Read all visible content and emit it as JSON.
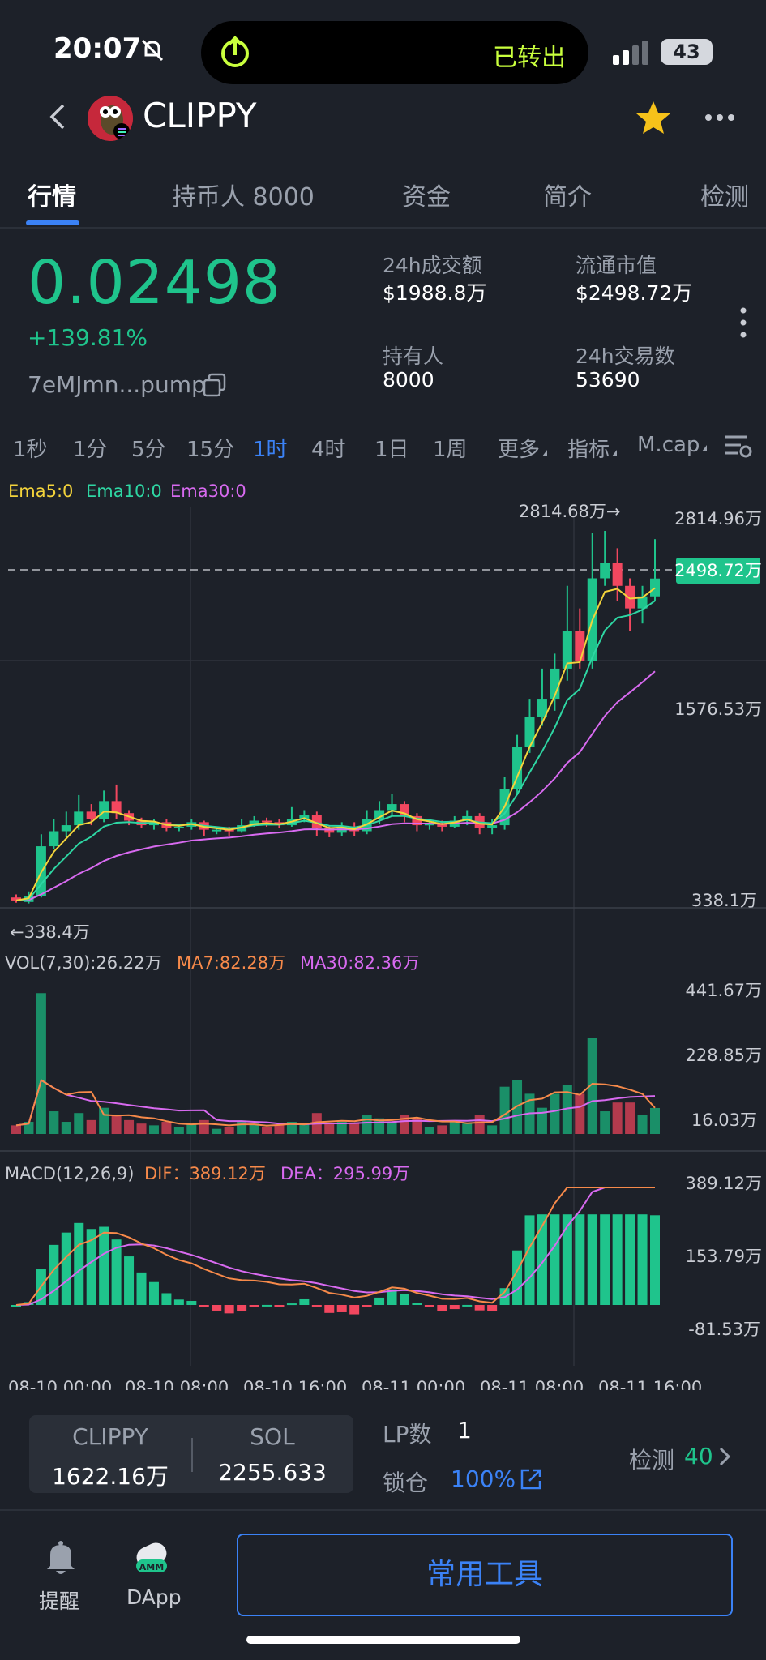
{
  "status_bar": {
    "time": "20:07",
    "activity": "已转出",
    "battery": "43"
  },
  "header": {
    "token_name": "CLIPPY"
  },
  "tabs": [
    {
      "label": "行情"
    },
    {
      "label": "持币人 8000"
    },
    {
      "label": "资金"
    },
    {
      "label": "简介"
    },
    {
      "label": "检测"
    }
  ],
  "price": {
    "value": "0.02498",
    "change": "+139.81%",
    "address": "7eMJmn...pump"
  },
  "stats": {
    "volume_label": "24h成交额",
    "volume_value": "$1988.8万",
    "mcap_label": "流通市值",
    "mcap_value": "$2498.72万",
    "holders_label": "持有人",
    "holders_value": "8000",
    "txns_label": "24h交易数",
    "txns_value": "53690"
  },
  "intervals": [
    "1秒",
    "1分",
    "5分",
    "15分",
    "1时",
    "4时",
    "1日",
    "1周",
    "更多",
    "指标",
    "M.cap"
  ],
  "active_interval": "1时",
  "chart": {
    "ema_legend": {
      "ema5": "Ema5:0",
      "ema10": "Ema10:0",
      "ema30": "Ema30:0"
    },
    "price_axis": [
      "2814.96万",
      "1576.53万",
      "338.1万"
    ],
    "current_label": "2498.72万",
    "high_marker": "2814.68万→",
    "low_marker": "←338.4万",
    "vol_legend": {
      "vol": "VOL(7,30):26.22万",
      "ma7": "MA7:82.28万",
      "ma30": "MA30:82.36万"
    },
    "vol_axis": [
      "441.67万",
      "228.85万",
      "16.03万"
    ],
    "macd_legend": {
      "macd": "MACD(12,26,9)",
      "dif": "DIF：389.12万",
      "dea": "DEA：295.99万"
    },
    "macd_axis": [
      "389.12万",
      "153.79万",
      "-81.53万"
    ],
    "time_axis": [
      "08-10 00:00",
      "08-10 08:00",
      "08-10 16:00",
      "08-11 00:00",
      "08-11 08:00",
      "08-11 16:00"
    ]
  },
  "chart_data": {
    "type": "candlestick",
    "unit": "万",
    "y_range": [
      338.1,
      2814.96
    ],
    "candles": [
      [
        380,
        360,
        400,
        345
      ],
      [
        350,
        390,
        420,
        340
      ],
      [
        390,
        720,
        800,
        380
      ],
      [
        720,
        820,
        900,
        700
      ],
      [
        820,
        860,
        950,
        780
      ],
      [
        860,
        950,
        1060,
        830
      ],
      [
        950,
        900,
        1000,
        860
      ],
      [
        900,
        1020,
        1090,
        880
      ],
      [
        1020,
        940,
        1130,
        900
      ],
      [
        940,
        890,
        960,
        860
      ],
      [
        890,
        860,
        910,
        840
      ],
      [
        860,
        880,
        900,
        830
      ],
      [
        880,
        840,
        900,
        820
      ],
      [
        840,
        850,
        870,
        820
      ],
      [
        850,
        880,
        900,
        830
      ],
      [
        880,
        830,
        890,
        790
      ],
      [
        830,
        830,
        850,
        800
      ],
      [
        830,
        820,
        850,
        790
      ],
      [
        820,
        860,
        900,
        810
      ],
      [
        860,
        890,
        920,
        850
      ],
      [
        890,
        880,
        910,
        850
      ],
      [
        880,
        860,
        900,
        840
      ],
      [
        860,
        900,
        980,
        850
      ],
      [
        900,
        930,
        960,
        880
      ],
      [
        930,
        840,
        950,
        790
      ],
      [
        840,
        810,
        860,
        780
      ],
      [
        810,
        850,
        880,
        790
      ],
      [
        850,
        820,
        880,
        790
      ],
      [
        820,
        900,
        960,
        800
      ],
      [
        900,
        960,
        1020,
        870
      ],
      [
        960,
        1000,
        1070,
        930
      ],
      [
        1000,
        920,
        1020,
        880
      ],
      [
        920,
        860,
        940,
        820
      ],
      [
        860,
        870,
        900,
        830
      ],
      [
        870,
        850,
        890,
        820
      ],
      [
        850,
        890,
        920,
        840
      ],
      [
        890,
        920,
        960,
        860
      ],
      [
        920,
        840,
        940,
        800
      ],
      [
        840,
        860,
        900,
        800
      ],
      [
        860,
        1100,
        1180,
        830
      ],
      [
        1100,
        1380,
        1460,
        1060
      ],
      [
        1380,
        1580,
        1700,
        1340
      ],
      [
        1580,
        1700,
        1900,
        1520
      ],
      [
        1700,
        1900,
        2000,
        1620
      ],
      [
        1900,
        2150,
        2450,
        1820
      ],
      [
        2150,
        1950,
        2300,
        1900
      ],
      [
        1950,
        2500,
        2800,
        1900
      ],
      [
        2500,
        2600,
        2814.68,
        2450
      ],
      [
        2600,
        2450,
        2700,
        2350
      ],
      [
        2450,
        2300,
        2500,
        2150
      ],
      [
        2300,
        2380,
        2450,
        2200
      ],
      [
        2380,
        2498.72,
        2760,
        2350
      ]
    ],
    "volume_range": [
      16.03,
      441.67
    ],
    "macd_range": [
      -81.53,
      389.12
    ]
  },
  "bottom": {
    "token_label": "CLIPPY",
    "token_amount": "1622.16万",
    "sol_label": "SOL",
    "sol_amount": "2255.633",
    "lp_label": "LP数",
    "lp_value": "1",
    "lock_label": "锁仓",
    "lock_value": "100%",
    "check_label": "检测",
    "check_value": "40"
  },
  "nav": {
    "alert_label": "提醒",
    "dapp_label": "DApp",
    "tools_label": "常用工具"
  },
  "colors": {
    "up": "#1fc48c",
    "down": "#f2475f",
    "ema5": "#f3d33b",
    "ema10": "#2ed6a3",
    "ema30": "#d86af0",
    "accent": "#3b82f6"
  }
}
